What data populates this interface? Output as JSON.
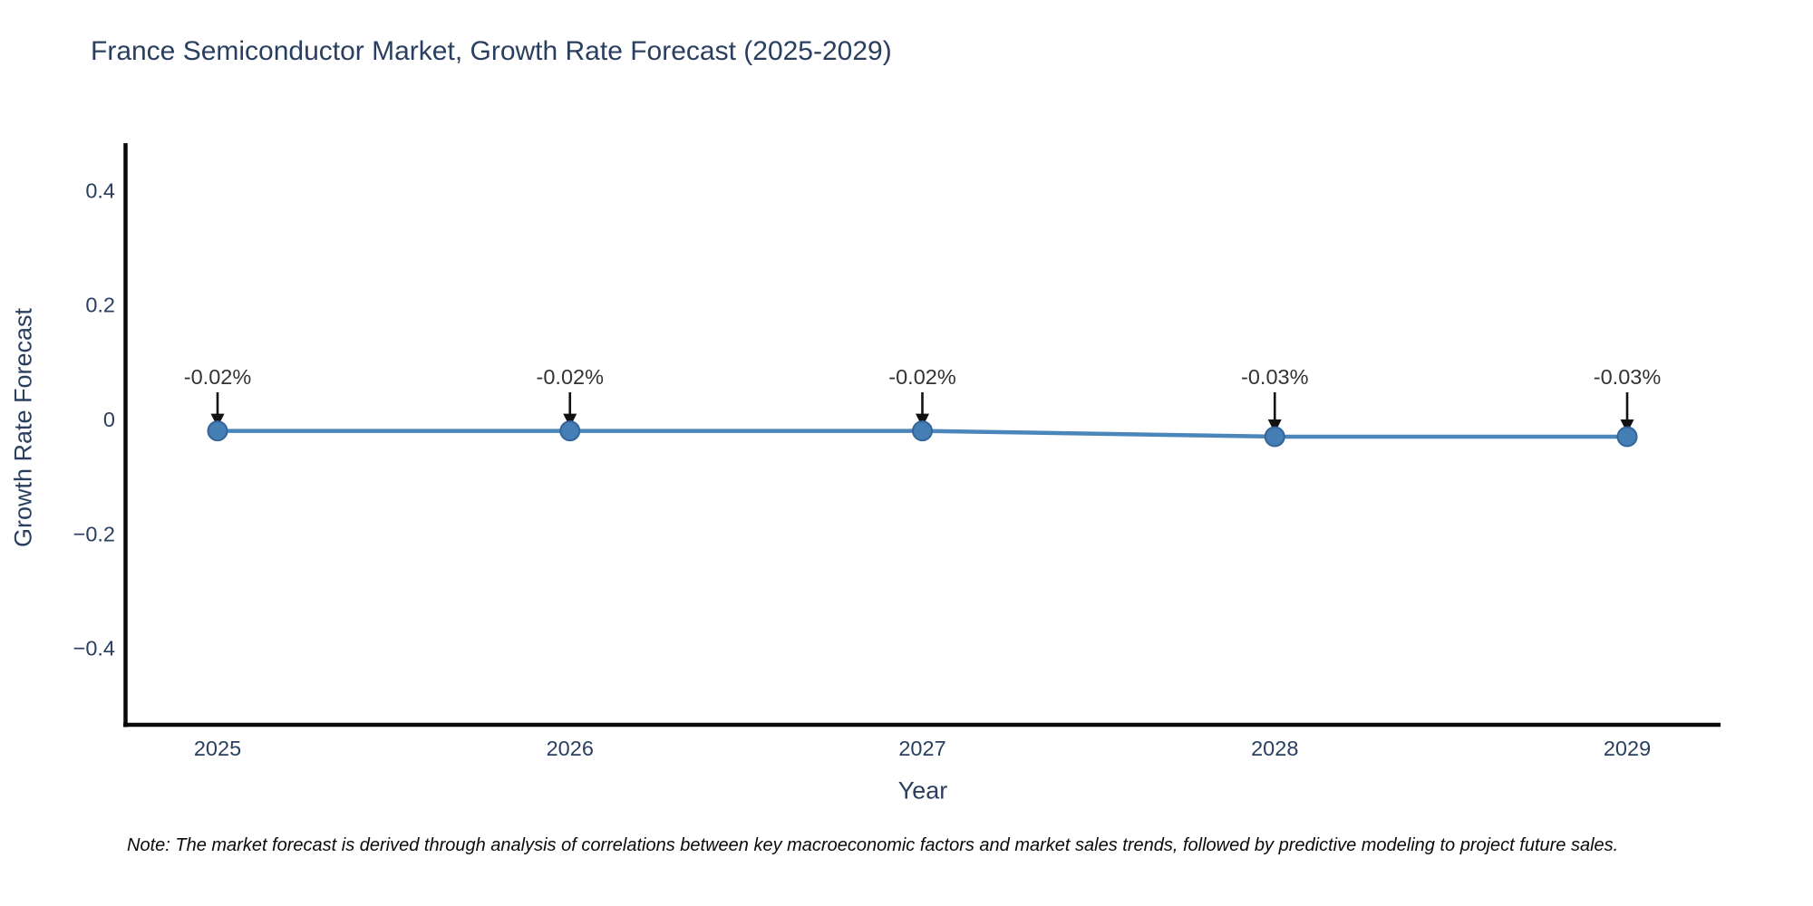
{
  "chart_data": {
    "type": "line",
    "title": "France Semiconductor Market, Growth Rate Forecast (2025-2029)",
    "xlabel": "Year",
    "ylabel": "Growth Rate Forecast",
    "categories": [
      "2025",
      "2026",
      "2027",
      "2028",
      "2029"
    ],
    "x": [
      2025,
      2026,
      2027,
      2028,
      2029
    ],
    "series": [
      {
        "name": "Growth Rate Forecast",
        "values": [
          -0.02,
          -0.02,
          -0.02,
          -0.03,
          -0.03
        ],
        "point_labels": [
          "-0.02%",
          "-0.02%",
          "-0.02%",
          "-0.03%",
          "-0.03%"
        ]
      }
    ],
    "ylim": [
      -0.535,
      0.48
    ],
    "yticks": [
      0.4,
      0.2,
      0,
      -0.2,
      -0.4
    ],
    "ytick_labels": [
      "0.4",
      "0.2",
      "0",
      "−0.2",
      "−0.4"
    ],
    "grid": false,
    "legend_position": "none",
    "annotations_have_arrows": true,
    "colors": {
      "line": "#4a86ba",
      "marker_fill": "#447eb4",
      "marker_edge": "#34659a",
      "axis_line": "#0a0a0a",
      "tick_text": "#2a3f5f",
      "annotation_text": "#333333",
      "arrow": "#111111",
      "title_text": "#2a3f5f",
      "background": "#ffffff"
    }
  },
  "note": {
    "text": "Note: The market forecast is derived through analysis of correlations between key macroeconomic factors and market sales trends, followed by predictive modeling to project future sales."
  }
}
